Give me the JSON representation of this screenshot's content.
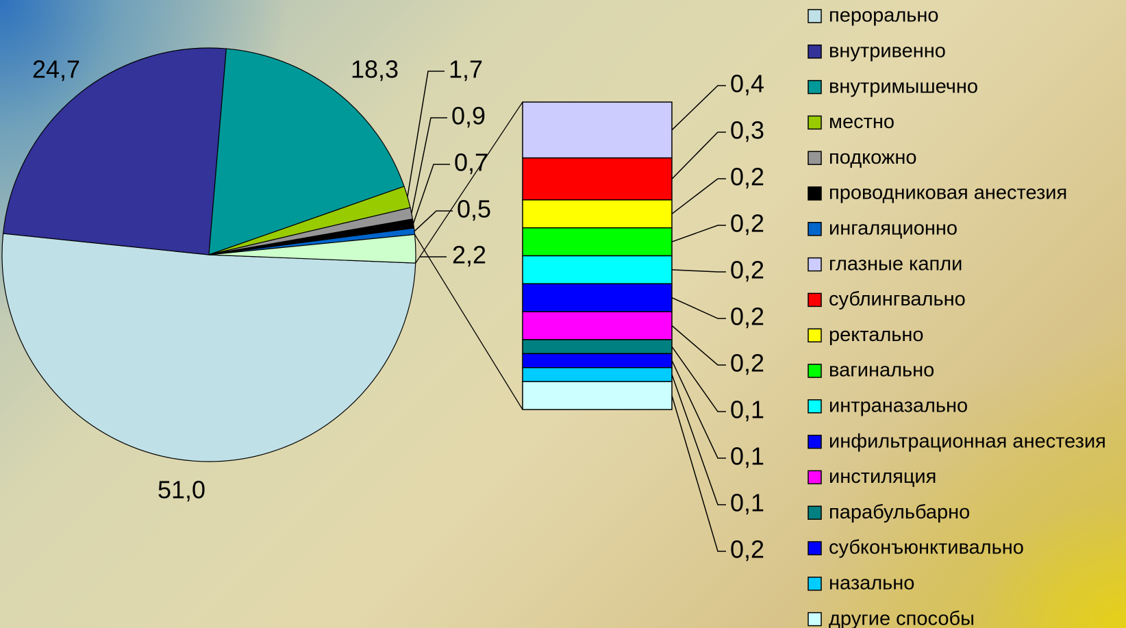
{
  "chart_data": {
    "type": "pie",
    "variant": "bar-of-pie",
    "main_slices": [
      {
        "label": "перорально",
        "value": 51.0,
        "display": "51,0",
        "color": "#bfe0e6"
      },
      {
        "label": "внутривенно",
        "value": 24.7,
        "display": "24,7",
        "color": "#333399"
      },
      {
        "label": "внутримышечно",
        "value": 18.3,
        "display": "18,3",
        "color": "#009999"
      },
      {
        "label": "местно",
        "value": 1.7,
        "display": "1,7",
        "color": "#99cc00"
      },
      {
        "label": "подкожно",
        "value": 0.9,
        "display": "0,9",
        "color": "#969696"
      },
      {
        "label": "проводниковая анестезия",
        "value": 0.7,
        "display": "0,7",
        "color": "#000000"
      },
      {
        "label": "ингаляционно",
        "value": 0.5,
        "display": "0,5",
        "color": "#0066cc"
      },
      {
        "label": "",
        "value": 2.2,
        "display": "2,2",
        "color": "#ccffcc"
      }
    ],
    "bar_items": [
      {
        "label": "глазные капли",
        "value": 0.4,
        "display": "0,4",
        "color": "#ccccff"
      },
      {
        "label": "сублингвально",
        "value": 0.3,
        "display": "0,3",
        "color": "#ff0000"
      },
      {
        "label": "ректально",
        "value": 0.2,
        "display": "0,2",
        "color": "#ffff00"
      },
      {
        "label": "вагинально",
        "value": 0.2,
        "display": "0,2",
        "color": "#00ff00"
      },
      {
        "label": "интраназально",
        "value": 0.2,
        "display": "0,2",
        "color": "#00ffff"
      },
      {
        "label": "инфильтрационная анестезия",
        "value": 0.2,
        "display": "0,2",
        "color": "#0000ff"
      },
      {
        "label": "инстиляция",
        "value": 0.2,
        "display": "0,2",
        "color": "#ff00ff"
      },
      {
        "label": "парабульбарно",
        "value": 0.1,
        "display": "0,1",
        "color": "#008080"
      },
      {
        "label": "субконъюнктивально",
        "value": 0.1,
        "display": "0,1",
        "color": "#0000ff"
      },
      {
        "label": "назально",
        "value": 0.1,
        "display": "0,1",
        "color": "#00ccff"
      },
      {
        "label": "другие способы",
        "value": 0.2,
        "display": "0,2",
        "color": "#ccffff"
      }
    ],
    "legend": [
      {
        "label": "перорально",
        "color": "#bfe0e6"
      },
      {
        "label": "внутривенно",
        "color": "#333399"
      },
      {
        "label": "внутримышечно",
        "color": "#009999"
      },
      {
        "label": "местно",
        "color": "#99cc00"
      },
      {
        "label": "подкожно",
        "color": "#969696"
      },
      {
        "label": "проводниковая анестезия",
        "color": "#000000"
      },
      {
        "label": "ингаляционно",
        "color": "#0066cc"
      },
      {
        "label": "глазные капли",
        "color": "#ccccff"
      },
      {
        "label": "сублингвально",
        "color": "#ff0000"
      },
      {
        "label": "ректально",
        "color": "#ffff00"
      },
      {
        "label": "вагинально",
        "color": "#00ff00"
      },
      {
        "label": "интраназально",
        "color": "#00ffff"
      },
      {
        "label": "инфильтрационная анестезия",
        "color": "#0000ff"
      },
      {
        "label": "инстиляция",
        "color": "#ff00ff"
      },
      {
        "label": "парабульбарно",
        "color": "#008080"
      },
      {
        "label": "субконъюнктивально",
        "color": "#0000ff"
      },
      {
        "label": "назально",
        "color": "#00ccff"
      },
      {
        "label": "другие способы",
        "color": "#ccffff"
      }
    ],
    "legend_placement": "right"
  }
}
